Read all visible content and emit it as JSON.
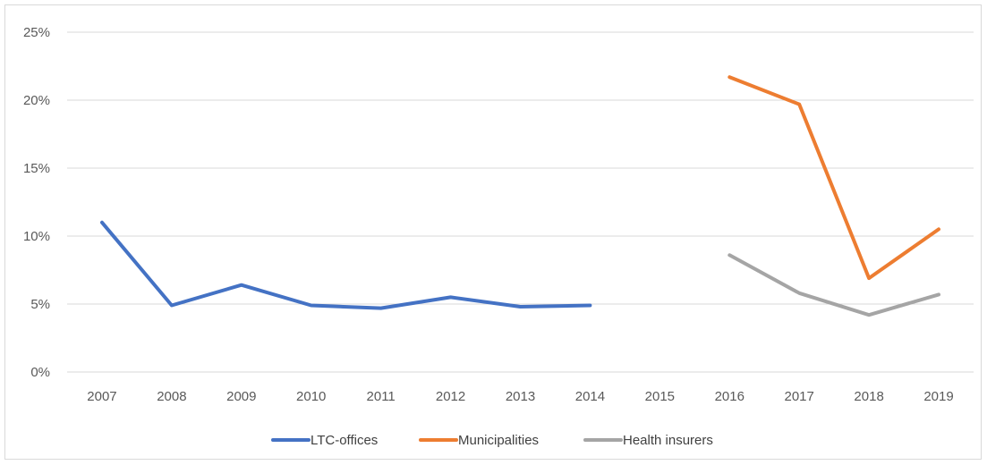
{
  "chart_data": {
    "type": "line",
    "title": "",
    "xlabel": "",
    "ylabel": "",
    "categories": [
      "2007",
      "2008",
      "2009",
      "2010",
      "2011",
      "2012",
      "2013",
      "2014",
      "2015",
      "2016",
      "2017",
      "2018",
      "2019"
    ],
    "ylim": [
      0,
      25
    ],
    "yticks": [
      "0%",
      "5%",
      "10%",
      "15%",
      "20%",
      "25%"
    ],
    "grid": "horizontal",
    "legend_position": "bottom",
    "series": [
      {
        "name": "LTC-offices",
        "color": "#4472C4",
        "values": [
          11.0,
          4.9,
          6.4,
          4.9,
          4.7,
          5.5,
          4.8,
          4.9,
          null,
          null,
          null,
          null,
          null
        ]
      },
      {
        "name": "Municipalities",
        "color": "#ED7D31",
        "values": [
          null,
          null,
          null,
          null,
          null,
          null,
          null,
          null,
          null,
          21.7,
          19.7,
          6.9,
          10.5
        ]
      },
      {
        "name": "Health insurers",
        "color": "#A5A5A5",
        "values": [
          null,
          null,
          null,
          null,
          null,
          null,
          null,
          null,
          null,
          8.6,
          5.8,
          4.2,
          5.7
        ]
      }
    ]
  }
}
